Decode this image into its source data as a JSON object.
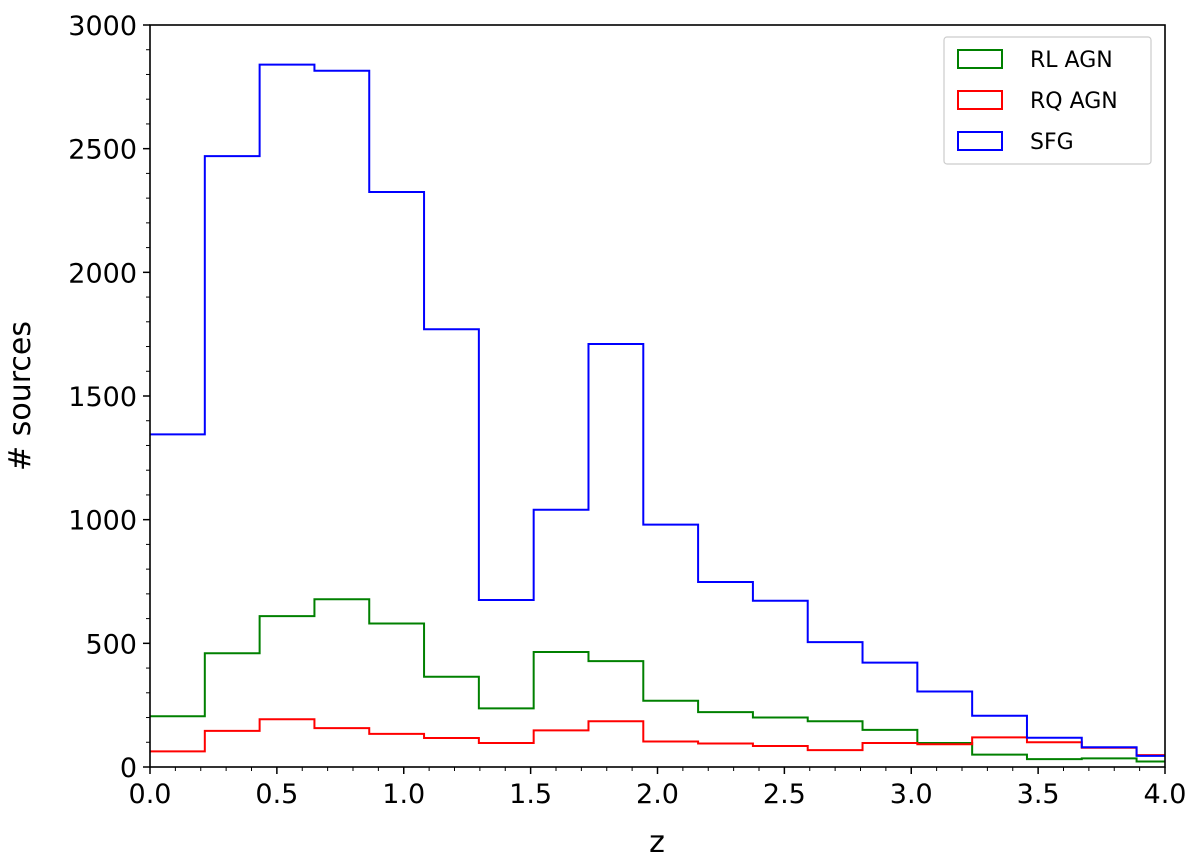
{
  "chart_data": {
    "type": "histogram",
    "xlabel": "z",
    "ylabel": "# sources",
    "xlim": [
      0.0,
      4.0
    ],
    "ylim": [
      0,
      3000
    ],
    "x_ticks": [
      "0.0",
      "0.5",
      "1.0",
      "1.5",
      "2.0",
      "2.5",
      "3.0",
      "3.5",
      "4.0"
    ],
    "y_ticks": [
      "0",
      "500",
      "1000",
      "1500",
      "2000",
      "2500",
      "3000"
    ],
    "grid": false,
    "legend_position": "top-right",
    "bin_edges": [
      0.0,
      0.216,
      0.432,
      0.648,
      0.864,
      1.08,
      1.296,
      1.512,
      1.728,
      1.944,
      2.16,
      2.376,
      2.592,
      2.808,
      3.024,
      3.24,
      3.456,
      3.672,
      3.888,
      4.0
    ],
    "series": [
      {
        "name": "RL AGN",
        "color": "#008000",
        "values": [
          205,
          460,
          610,
          678,
          580,
          365,
          237,
          465,
          428,
          268,
          222,
          200,
          185,
          150,
          97,
          50,
          32,
          35,
          22
        ]
      },
      {
        "name": "RQ AGN",
        "color": "#ff0000",
        "values": [
          63,
          146,
          193,
          157,
          134,
          117,
          97,
          148,
          185,
          103,
          95,
          85,
          68,
          97,
          92,
          120,
          100,
          78,
          48
        ]
      },
      {
        "name": "SFG",
        "color": "#0000ff",
        "values": [
          1345,
          2470,
          2840,
          2815,
          2325,
          1770,
          675,
          1040,
          1710,
          980,
          748,
          672,
          505,
          422,
          305,
          207,
          118,
          80,
          45
        ]
      }
    ]
  }
}
